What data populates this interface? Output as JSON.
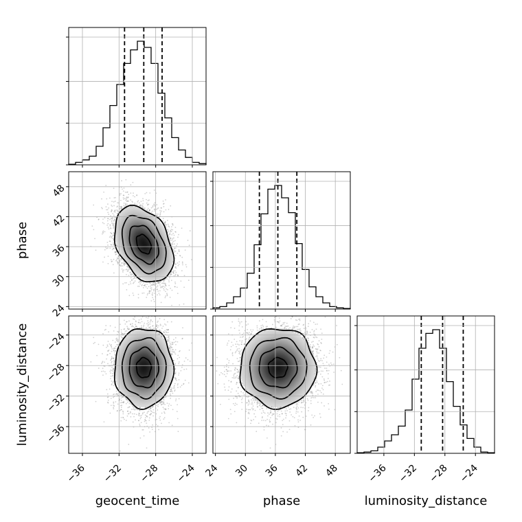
{
  "chart_data": {
    "type": "corner",
    "parameters": [
      "geocent_time",
      "phase",
      "luminosity_distance"
    ],
    "axis_labels": {
      "x": [
        "geocent_time",
        "phase",
        "luminosity_distance"
      ],
      "y": [
        "",
        "phase",
        "luminosity_distance"
      ]
    },
    "ranges": {
      "geocent_time": [
        -37.5,
        -22.5
      ],
      "phase": [
        23.5,
        51.0
      ],
      "luminosity_distance": [
        -39.5,
        -21.5
      ]
    },
    "ticks": {
      "geocent_time": [
        -36,
        -32,
        -28,
        -24
      ],
      "phase": [
        24,
        30,
        36,
        42,
        48
      ],
      "luminosity_distance": [
        -36,
        -32,
        -28,
        -24
      ]
    },
    "tick_labels": {
      "geocent_time": [
        "−36",
        "−32",
        "−28",
        "−24"
      ],
      "phase": [
        "24",
        "30",
        "36",
        "42",
        "48"
      ],
      "luminosity_distance": [
        "−36",
        "−32",
        "−28",
        "−24"
      ]
    },
    "quantiles": {
      "geocent_time": [
        -31.4,
        -29.3,
        -27.3
      ],
      "phase": [
        32.8,
        36.5,
        40.3
      ],
      "luminosity_distance": [
        -31.1,
        -28.3,
        -25.6
      ]
    },
    "histograms": {
      "geocent_time": [
        0.005,
        0.02,
        0.04,
        0.07,
        0.15,
        0.3,
        0.48,
        0.65,
        0.82,
        0.93,
        1.0,
        0.95,
        0.82,
        0.58,
        0.38,
        0.22,
        0.12,
        0.06,
        0.02,
        0.01
      ],
      "phase": [
        0.01,
        0.02,
        0.05,
        0.1,
        0.17,
        0.29,
        0.52,
        0.77,
        0.97,
        1.0,
        0.9,
        0.78,
        0.53,
        0.32,
        0.18,
        0.1,
        0.05,
        0.02,
        0.01,
        0.005
      ],
      "luminosity_distance": [
        0.005,
        0.01,
        0.02,
        0.05,
        0.1,
        0.15,
        0.22,
        0.35,
        0.6,
        0.85,
        0.97,
        1.0,
        0.85,
        0.58,
        0.38,
        0.23,
        0.12,
        0.05,
        0.01,
        0.005
      ]
    },
    "posterior_summary": {
      "geocent_time": {
        "mean": -29.3,
        "std": 1.6
      },
      "phase": {
        "mean": 36.5,
        "std": 3.8
      },
      "luminosity_distance": {
        "mean": -28.3,
        "std": 2.6
      },
      "correlations": {
        "geocent_time__phase": -0.35,
        "geocent_time__luminosity_distance": 0.0,
        "phase__luminosity_distance": 0.0
      }
    },
    "grid": true,
    "colors": {
      "line": "#000000",
      "grid": "#b0b0b0",
      "points": "#777777"
    }
  }
}
